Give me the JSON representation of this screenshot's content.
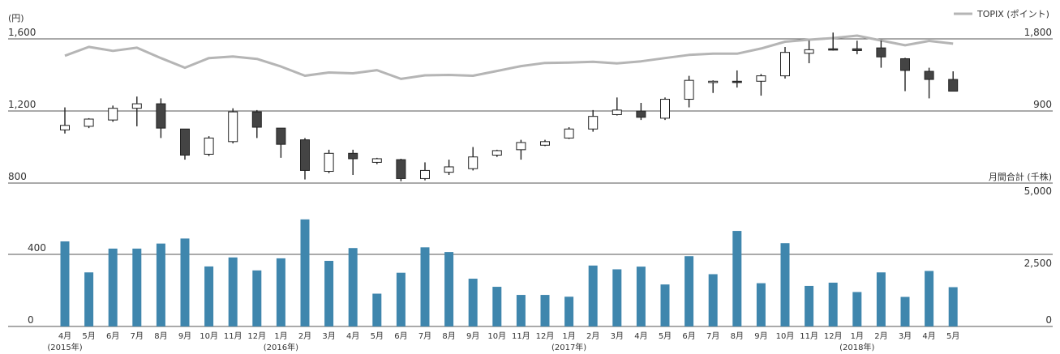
{
  "chart_data": [
    {
      "type": "candlestick+line",
      "yunit_left": "(円)",
      "y_left_ticks": [
        "1,600",
        "1,200",
        "800"
      ],
      "y_left_range": [
        800,
        1600
      ],
      "legend": {
        "label": "TOPIX (ポイント)",
        "color": "#b5b5b5",
        "placement": "top-right"
      },
      "y_right_ticks": [
        "1,800",
        "900"
      ],
      "y_right_range": [
        0,
        1800
      ],
      "up_color": "#ffffff",
      "down_color": "#444444",
      "months": [
        "2015-04",
        "2015-05",
        "2015-06",
        "2015-07",
        "2015-08",
        "2015-09",
        "2015-10",
        "2015-11",
        "2015-12",
        "2016-01",
        "2016-02",
        "2016-03",
        "2016-04",
        "2016-05",
        "2016-06",
        "2016-07",
        "2016-08",
        "2016-09",
        "2016-10",
        "2016-11",
        "2016-12",
        "2017-01",
        "2017-02",
        "2017-03",
        "2017-04",
        "2017-05",
        "2017-06",
        "2017-07",
        "2017-08",
        "2017-09",
        "2017-10",
        "2017-11",
        "2017-12",
        "2018-01",
        "2018-02",
        "2018-03",
        "2018-04",
        "2018-05"
      ],
      "candles": [
        {
          "open": 1095,
          "high": 1220,
          "low": 1075,
          "close": 1120
        },
        {
          "open": 1115,
          "high": 1160,
          "low": 1105,
          "close": 1155
        },
        {
          "open": 1150,
          "high": 1230,
          "low": 1140,
          "close": 1215
        },
        {
          "open": 1215,
          "high": 1280,
          "low": 1115,
          "close": 1240
        },
        {
          "open": 1240,
          "high": 1270,
          "low": 1050,
          "close": 1105
        },
        {
          "open": 1100,
          "high": 1100,
          "low": 930,
          "close": 955
        },
        {
          "open": 960,
          "high": 1060,
          "low": 950,
          "close": 1050
        },
        {
          "open": 1030,
          "high": 1215,
          "low": 1020,
          "close": 1195
        },
        {
          "open": 1195,
          "high": 1205,
          "low": 1050,
          "close": 1110
        },
        {
          "open": 1105,
          "high": 1105,
          "low": 940,
          "close": 1015
        },
        {
          "open": 1040,
          "high": 1050,
          "low": 820,
          "close": 870
        },
        {
          "open": 865,
          "high": 985,
          "low": 855,
          "close": 965
        },
        {
          "open": 965,
          "high": 985,
          "low": 845,
          "close": 935
        },
        {
          "open": 915,
          "high": 940,
          "low": 905,
          "close": 935
        },
        {
          "open": 930,
          "high": 935,
          "low": 810,
          "close": 825
        },
        {
          "open": 825,
          "high": 915,
          "low": 815,
          "close": 870
        },
        {
          "open": 860,
          "high": 930,
          "low": 845,
          "close": 890
        },
        {
          "open": 880,
          "high": 1000,
          "low": 870,
          "close": 945
        },
        {
          "open": 955,
          "high": 985,
          "low": 945,
          "close": 980
        },
        {
          "open": 985,
          "high": 1040,
          "low": 930,
          "close": 1025
        },
        {
          "open": 1010,
          "high": 1040,
          "low": 1005,
          "close": 1030
        },
        {
          "open": 1050,
          "high": 1110,
          "low": 1045,
          "close": 1100
        },
        {
          "open": 1100,
          "high": 1205,
          "low": 1085,
          "close": 1170
        },
        {
          "open": 1180,
          "high": 1275,
          "low": 1175,
          "close": 1205
        },
        {
          "open": 1200,
          "high": 1245,
          "low": 1150,
          "close": 1165
        },
        {
          "open": 1160,
          "high": 1275,
          "low": 1150,
          "close": 1265
        },
        {
          "open": 1265,
          "high": 1395,
          "low": 1220,
          "close": 1370
        },
        {
          "open": 1360,
          "high": 1370,
          "low": 1300,
          "close": 1365
        },
        {
          "open": 1365,
          "high": 1425,
          "low": 1330,
          "close": 1360
        },
        {
          "open": 1365,
          "high": 1405,
          "low": 1285,
          "close": 1395
        },
        {
          "open": 1395,
          "high": 1555,
          "low": 1380,
          "close": 1525
        },
        {
          "open": 1520,
          "high": 1590,
          "low": 1465,
          "close": 1540
        },
        {
          "open": 1545,
          "high": 1635,
          "low": 1535,
          "close": 1540
        },
        {
          "open": 1545,
          "high": 1590,
          "low": 1515,
          "close": 1535
        },
        {
          "open": 1550,
          "high": 1590,
          "low": 1440,
          "close": 1500
        },
        {
          "open": 1490,
          "high": 1495,
          "low": 1310,
          "close": 1425
        },
        {
          "open": 1420,
          "high": 1440,
          "low": 1270,
          "close": 1375
        },
        {
          "open": 1375,
          "high": 1420,
          "low": 1310,
          "close": 1310
        }
      ],
      "topix": [
        1590,
        1700,
        1650,
        1690,
        1560,
        1440,
        1560,
        1580,
        1550,
        1455,
        1340,
        1380,
        1370,
        1410,
        1300,
        1345,
        1350,
        1340,
        1400,
        1460,
        1500,
        1505,
        1515,
        1495,
        1520,
        1560,
        1600,
        1615,
        1615,
        1680,
        1765,
        1790,
        1810,
        1840,
        1780,
        1720,
        1775,
        1740
      ]
    },
    {
      "type": "bar",
      "yunit_right": "月間合計 (千株)",
      "y_left_ticks": [
        "400",
        "0"
      ],
      "y_right_ticks": [
        "5,000",
        "2,500",
        "0"
      ],
      "y_left_range": [
        0,
        800
      ],
      "y_right_range": [
        0,
        5000
      ],
      "color": "#3f86ad",
      "categories": [
        "4月",
        "5月",
        "6月",
        "7月",
        "8月",
        "9月",
        "10月",
        "11月",
        "12月",
        "1月",
        "2月",
        "3月",
        "4月",
        "5月",
        "6月",
        "7月",
        "8月",
        "9月",
        "10月",
        "11月",
        "12月",
        "1月",
        "2月",
        "3月",
        "4月",
        "5月",
        "6月",
        "7月",
        "8月",
        "9月",
        "10月",
        "11月",
        "12月",
        "1月",
        "2月",
        "3月",
        "4月",
        "5月"
      ],
      "month_suffix": "月",
      "year_labels": [
        {
          "index": 0,
          "text": "(2015年)"
        },
        {
          "index": 9,
          "text": "(2016年)"
        },
        {
          "index": 21,
          "text": "(2017年)"
        },
        {
          "index": 33,
          "text": "(2018年)"
        }
      ],
      "values": [
        472,
        300,
        432,
        432,
        460,
        488,
        333,
        383,
        311,
        378,
        594,
        364,
        435,
        182,
        298,
        439,
        413,
        265,
        220,
        175,
        175,
        165,
        338,
        317,
        332,
        233,
        390,
        290,
        530,
        240,
        462,
        225,
        243,
        191,
        300,
        164,
        308,
        218
      ]
    }
  ]
}
